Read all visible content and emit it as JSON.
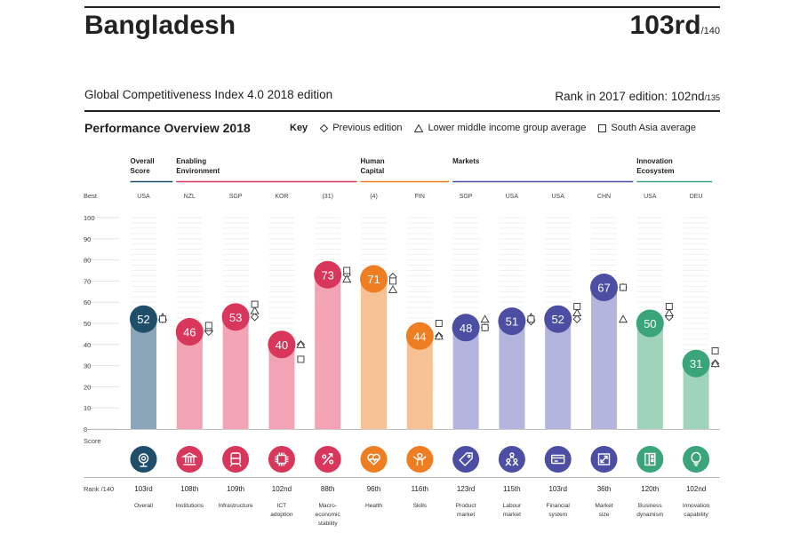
{
  "header": {
    "country": "Bangladesh",
    "rank": "103rd",
    "rank_total": "/140",
    "edition": "Global Competitiveness Index 4.0 2018 edition",
    "rank_2017_label": "Rank in 2017 edition: 102nd",
    "rank_2017_total": "/135"
  },
  "overview": {
    "title": "Performance Overview 2018",
    "key_label": "Key",
    "key_items": [
      {
        "symbol": "diamond",
        "label": "Previous edition"
      },
      {
        "symbol": "triangle",
        "label": "Lower middle income group average"
      },
      {
        "symbol": "square",
        "label": "South Asia average"
      }
    ]
  },
  "chart_data": {
    "type": "bar",
    "ylim": [
      0,
      100
    ],
    "yticks": [
      0,
      10,
      20,
      30,
      40,
      50,
      60,
      70,
      80,
      90,
      100
    ],
    "best_label": "Best",
    "score_label": "Score",
    "rank_label": "Rank /140",
    "groups": [
      {
        "label": "Overall Score",
        "color": "#1f4e6b",
        "start": 0,
        "end": 0
      },
      {
        "label": "Enabling Environment",
        "color": "#d9365c",
        "start": 1,
        "end": 4
      },
      {
        "label": "Human Capital",
        "color": "#ef7d22",
        "start": 5,
        "end": 6
      },
      {
        "label": "Markets",
        "color": "#4b4ea3",
        "start": 7,
        "end": 10
      },
      {
        "label": "Innovation Ecosystem",
        "color": "#3aa57a",
        "start": 11,
        "end": 12
      }
    ],
    "pillars": [
      {
        "name": "Overall",
        "best": "USA",
        "score": 52,
        "rank": "103rd",
        "prev": 52,
        "lmi": 53,
        "sa": 52,
        "color": "#1f4e6b",
        "bar": "#8aa5b7",
        "icon": "target-icon"
      },
      {
        "name": "Institutions",
        "best": "NZL",
        "score": 46,
        "rank": "108th",
        "prev": 46,
        "lmi": 48,
        "sa": 49,
        "color": "#d9365c",
        "bar": "#f2a3b4",
        "icon": "institutions-icon"
      },
      {
        "name": "Infrastructure",
        "best": "SGP",
        "score": 53,
        "rank": "109th",
        "prev": 53,
        "lmi": 56,
        "sa": 59,
        "color": "#d9365c",
        "bar": "#f2a3b4",
        "icon": "infrastructure-icon"
      },
      {
        "name": "ICT adoption",
        "best": "KOR",
        "score": 40,
        "rank": "102nd",
        "prev": 40,
        "lmi": 40,
        "sa": 33,
        "color": "#d9365c",
        "bar": "#f2a3b4",
        "icon": "chip-icon"
      },
      {
        "name": "Macro-economic stability",
        "best": "(31)",
        "score": 73,
        "rank": "88th",
        "prev": 73,
        "lmi": 71,
        "sa": 75,
        "color": "#d9365c",
        "bar": "#f2a3b4",
        "icon": "percent-icon"
      },
      {
        "name": "Health",
        "best": "(4)",
        "score": 71,
        "rank": "96th",
        "prev": 72,
        "lmi": 66,
        "sa": 70,
        "color": "#ef7d22",
        "bar": "#f6c295",
        "icon": "heart-icon"
      },
      {
        "name": "Skills",
        "best": "FIN",
        "score": 44,
        "rank": "116th",
        "prev": 44,
        "lmi": 44,
        "sa": 50,
        "color": "#ef7d22",
        "bar": "#f6c295",
        "icon": "person-icon"
      },
      {
        "name": "Product market",
        "best": "SGP",
        "score": 48,
        "rank": "123rd",
        "prev": 48,
        "lmi": 52,
        "sa": 48,
        "color": "#4b4ea3",
        "bar": "#b4b5de",
        "icon": "tag-icon"
      },
      {
        "name": "Labour market",
        "best": "USA",
        "score": 51,
        "rank": "115th",
        "prev": 51,
        "lmi": 53,
        "sa": 52,
        "color": "#4b4ea3",
        "bar": "#b4b5de",
        "icon": "people-icon"
      },
      {
        "name": "Financial system",
        "best": "USA",
        "score": 52,
        "rank": "103rd",
        "prev": 52,
        "lmi": 55,
        "sa": 58,
        "color": "#4b4ea3",
        "bar": "#b4b5de",
        "icon": "card-icon"
      },
      {
        "name": "Market size",
        "best": "CHN",
        "score": 67,
        "rank": "36th",
        "prev": 67,
        "lmi": 52,
        "sa": 67,
        "color": "#4b4ea3",
        "bar": "#b4b5de",
        "icon": "expand-icon"
      },
      {
        "name": "Business dynamism",
        "best": "USA",
        "score": 50,
        "rank": "120th",
        "prev": 53,
        "lmi": 55,
        "sa": 58,
        "color": "#3aa57a",
        "bar": "#9fd4bb",
        "icon": "business-icon"
      },
      {
        "name": "Innovation capability",
        "best": "DEU",
        "score": 31,
        "rank": "102nd",
        "prev": 31,
        "lmi": 31,
        "sa": 37,
        "color": "#3aa57a",
        "bar": "#9fd4bb",
        "icon": "bulb-icon"
      }
    ]
  }
}
